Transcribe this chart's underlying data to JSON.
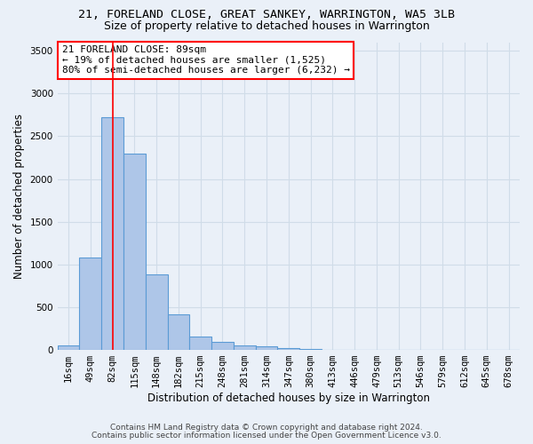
{
  "title_line1": "21, FORELAND CLOSE, GREAT SANKEY, WARRINGTON, WA5 3LB",
  "title_line2": "Size of property relative to detached houses in Warrington",
  "xlabel": "Distribution of detached houses by size in Warrington",
  "ylabel": "Number of detached properties",
  "categories": [
    "16sqm",
    "49sqm",
    "82sqm",
    "115sqm",
    "148sqm",
    "182sqm",
    "215sqm",
    "248sqm",
    "281sqm",
    "314sqm",
    "347sqm",
    "380sqm",
    "413sqm",
    "446sqm",
    "479sqm",
    "513sqm",
    "546sqm",
    "579sqm",
    "612sqm",
    "645sqm",
    "678sqm"
  ],
  "values": [
    50,
    1080,
    2720,
    2300,
    880,
    420,
    160,
    90,
    55,
    40,
    20,
    10,
    5,
    3,
    2,
    1,
    1,
    0,
    0,
    0,
    0
  ],
  "bar_color": "#aec6e8",
  "bar_edge_color": "#5b9bd5",
  "pct_smaller": "19%",
  "n_smaller": "1,525",
  "pct_larger_semi": "80%",
  "n_larger_semi": "6,232",
  "red_line_x": 2.0,
  "ylim": [
    0,
    3600
  ],
  "yticks": [
    0,
    500,
    1000,
    1500,
    2000,
    2500,
    3000,
    3500
  ],
  "footer_line1": "Contains HM Land Registry data © Crown copyright and database right 2024.",
  "footer_line2": "Contains public sector information licensed under the Open Government Licence v3.0.",
  "bg_color": "#eaf0f8",
  "plot_bg_color": "#eaf0f8",
  "grid_color": "#d0dce8",
  "title_fontsize": 9.5,
  "subtitle_fontsize": 9,
  "axis_label_fontsize": 8.5,
  "tick_fontsize": 7.5,
  "annotation_fontsize": 8,
  "footer_fontsize": 6.5
}
